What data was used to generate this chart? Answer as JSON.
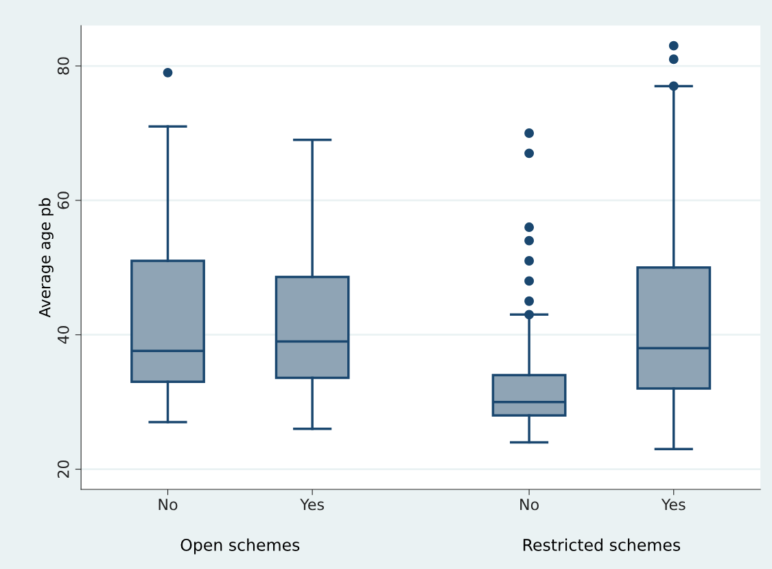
{
  "chart_data": {
    "type": "box",
    "ylabel": "Average age pb",
    "categories": [
      "No",
      "Yes",
      "No",
      "Yes"
    ],
    "annotations": [
      "Open schemes",
      "Restricted schemes"
    ],
    "color": "#8fa4b5",
    "boxes": [
      {
        "low": 27,
        "q1": 33,
        "median": 37.6,
        "q3": 51,
        "high": 71,
        "outliers": [
          79
        ]
      },
      {
        "low": 26,
        "q1": 33.6,
        "median": 39,
        "q3": 48.6,
        "high": 69
      },
      {
        "low": 24,
        "q1": 28,
        "median": 30,
        "q3": 34,
        "high": 43,
        "outliers": [
          43,
          45,
          48,
          51,
          54,
          56,
          67,
          70
        ]
      },
      {
        "low": 23,
        "q1": 32,
        "median": 38,
        "q3": 50,
        "high": 77,
        "outliers": [
          77,
          81,
          83
        ]
      }
    ],
    "ylim": [
      17,
      86
    ],
    "yticks": [
      20,
      40,
      60,
      80
    ],
    "grid": "y"
  }
}
